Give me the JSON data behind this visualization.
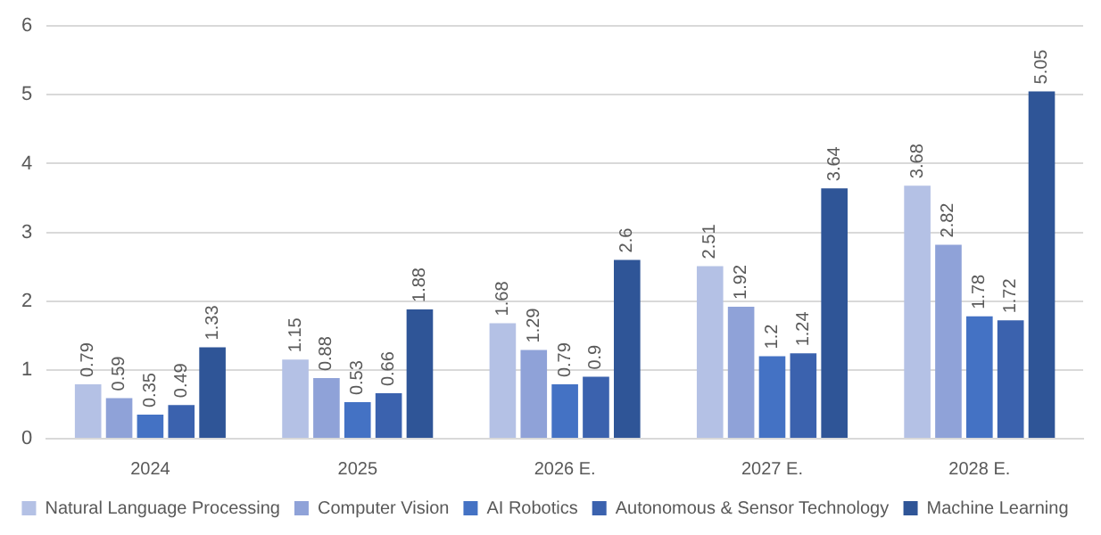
{
  "chart_data": {
    "type": "bar",
    "categories": [
      "2024",
      "2025",
      "2026 E.",
      "2027 E.",
      "2028 E."
    ],
    "series": [
      {
        "name": "Natural Language Processing",
        "color": "#b4c1e5",
        "values": [
          0.79,
          1.15,
          1.68,
          2.51,
          3.68
        ]
      },
      {
        "name": "Computer Vision",
        "color": "#8fa2d8",
        "values": [
          0.59,
          0.88,
          1.29,
          1.92,
          2.82
        ]
      },
      {
        "name": "AI Robotics",
        "color": "#4472c4",
        "values": [
          0.35,
          0.53,
          0.79,
          1.2,
          1.78
        ]
      },
      {
        "name": "Autonomous & Sensor Technology",
        "color": "#3b62ae",
        "values": [
          0.49,
          0.66,
          0.9,
          1.24,
          1.72
        ]
      },
      {
        "name": "Machine Learning",
        "color": "#2f5597",
        "values": [
          1.33,
          1.88,
          2.6,
          3.64,
          5.05
        ]
      }
    ],
    "ylim": [
      0,
      6
    ],
    "yticks": [
      0,
      1,
      2,
      3,
      4,
      5,
      6
    ],
    "grid": "y",
    "legend": "bottom",
    "data_labels": true
  }
}
